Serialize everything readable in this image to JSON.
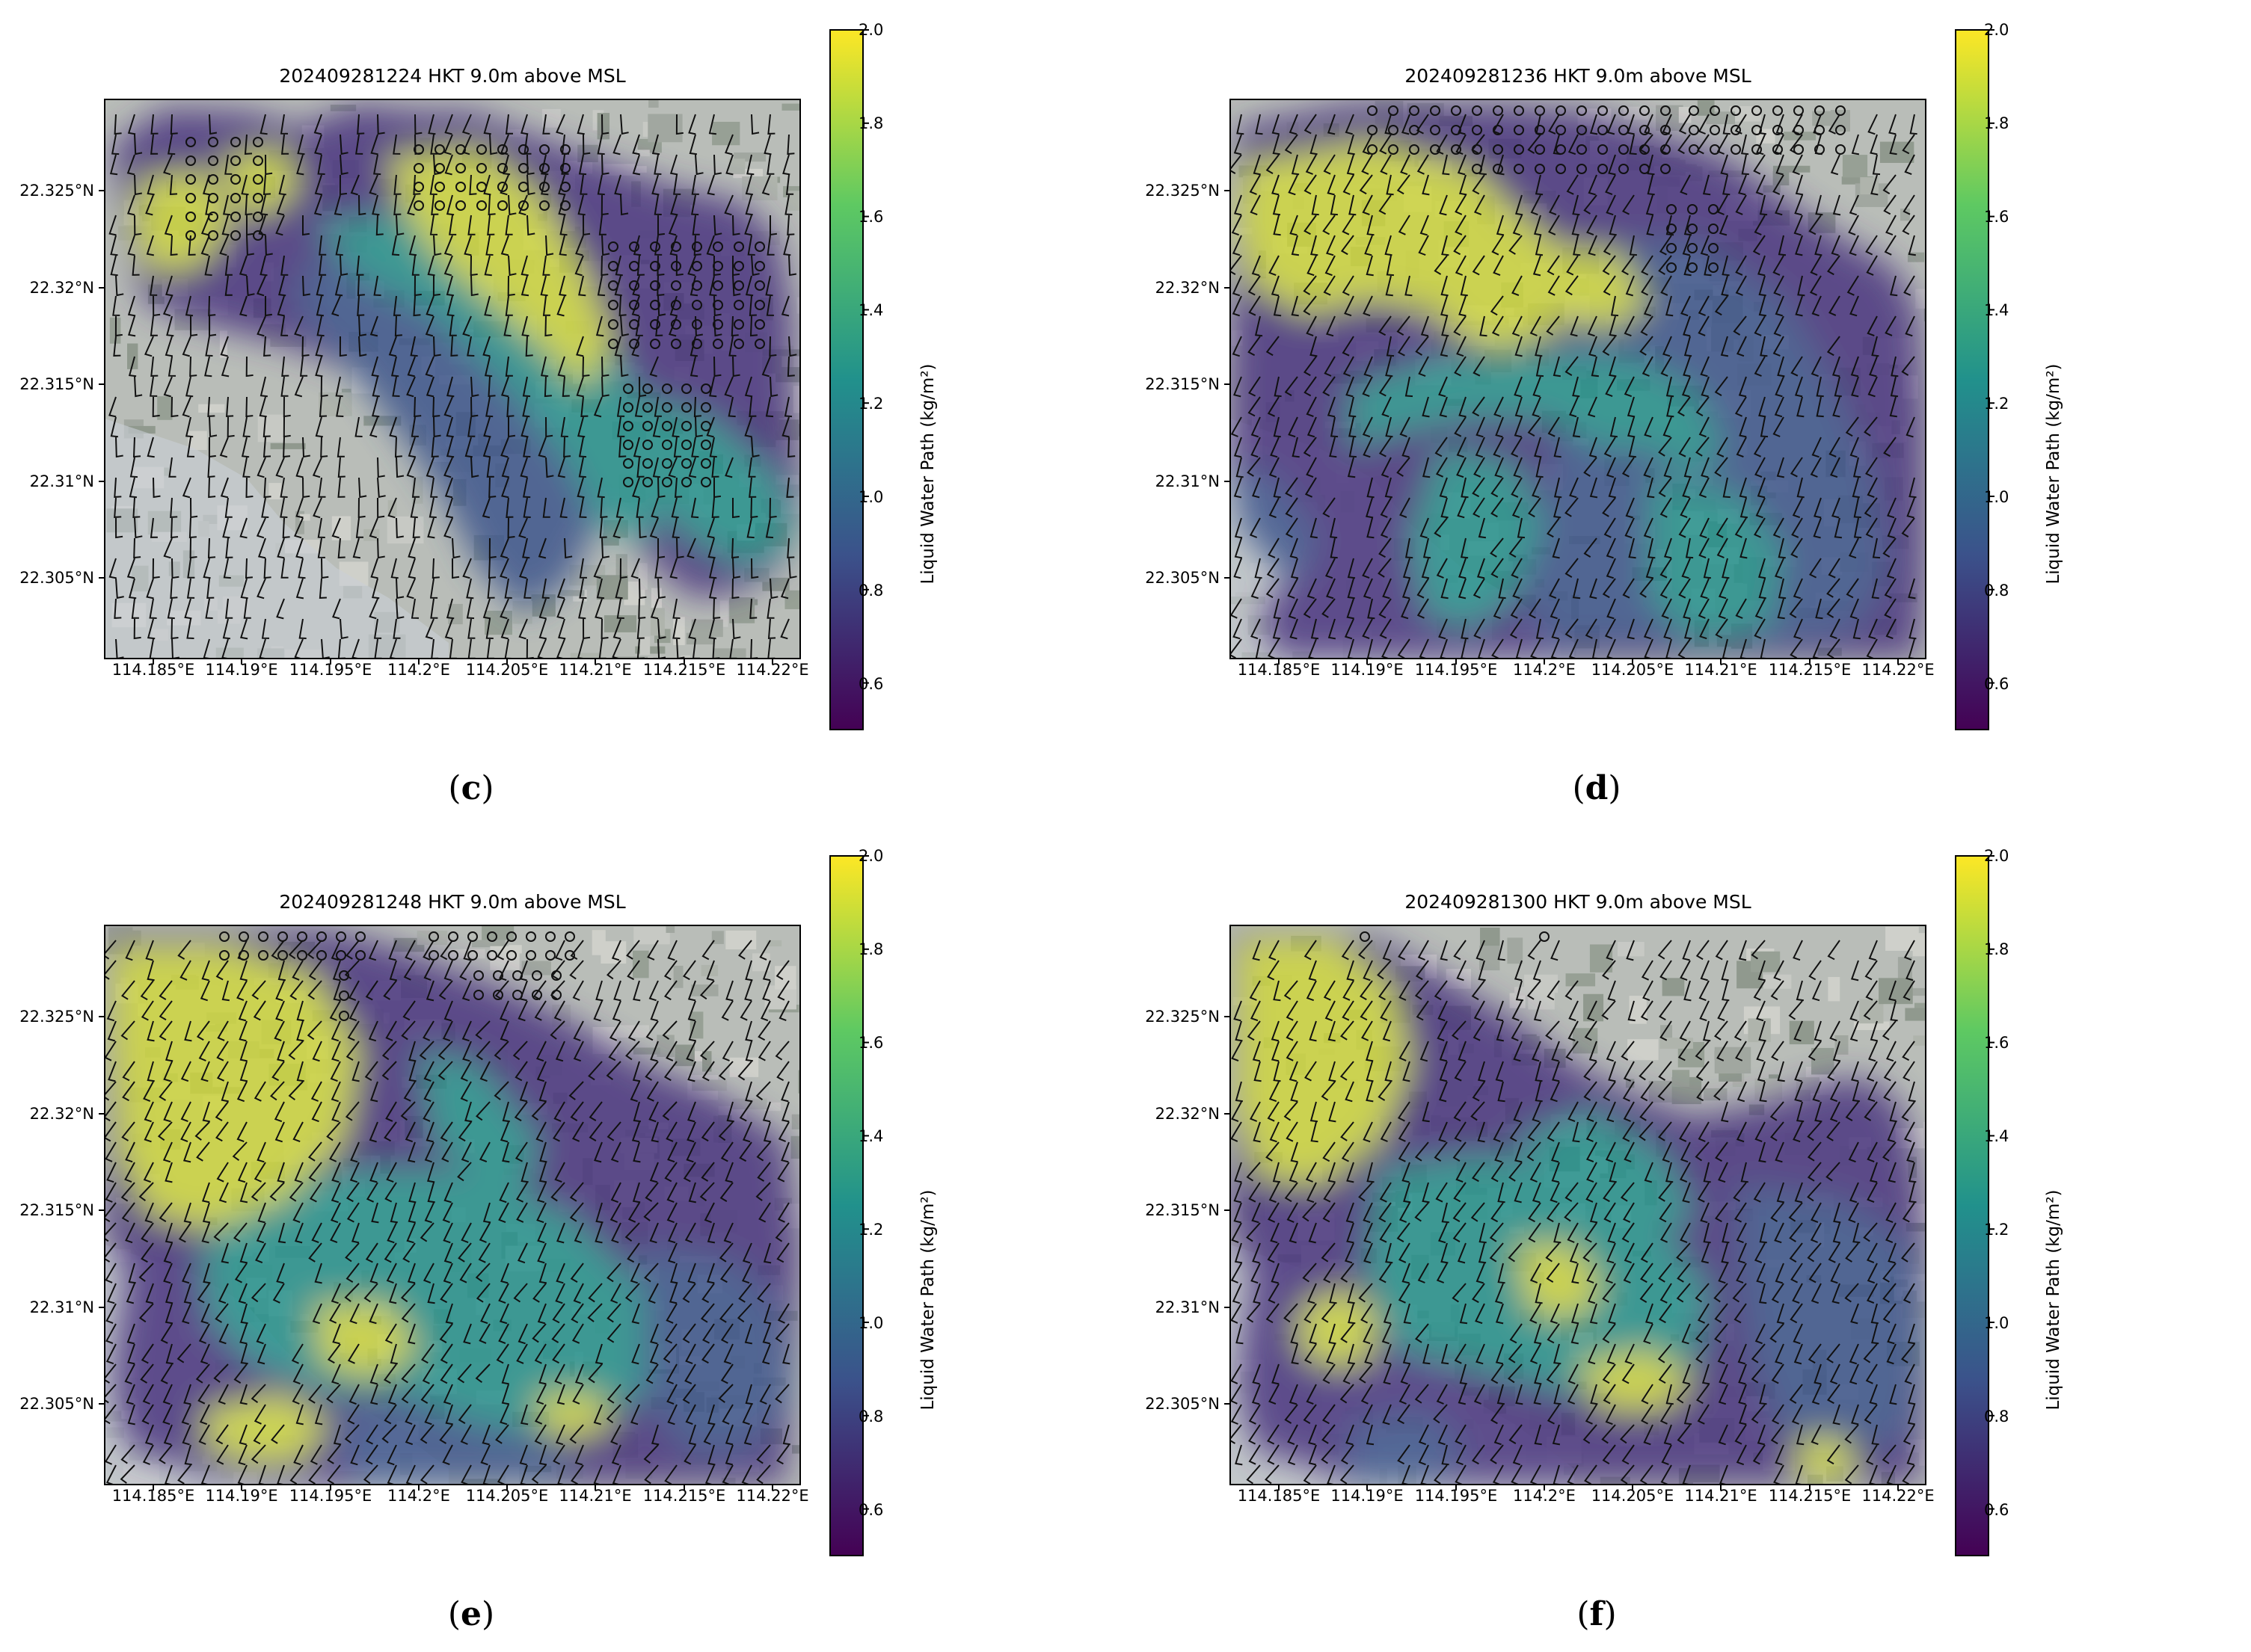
{
  "panels": [
    {
      "id": "c",
      "title": "202409281224 HKT 9.0m above MSL",
      "letter": "c"
    },
    {
      "id": "d",
      "title": "202409281236 HKT 9.0m above MSL",
      "letter": "d"
    },
    {
      "id": "e",
      "title": "202409281248 HKT 9.0m above MSL",
      "letter": "e"
    },
    {
      "id": "f",
      "title": "202409281300 HKT 9.0m above MSL",
      "letter": "f"
    }
  ],
  "axes": {
    "lat_ticks": [
      "22.325°N",
      "22.32°N",
      "22.315°N",
      "22.31°N",
      "22.305°N"
    ],
    "lon_ticks": [
      "114.185°E",
      "114.19°E",
      "114.195°E",
      "114.2°E",
      "114.205°E",
      "114.21°E",
      "114.215°E",
      "114.22°E"
    ]
  },
  "colorbar": {
    "title": "Liquid Water Path (kg/m²)",
    "ticks": [
      "2.0",
      "1.8",
      "1.6",
      "1.4",
      "1.2",
      "1.0",
      "0.8",
      "0.6"
    ],
    "range": [
      0.5,
      2.0
    ],
    "colormap": "viridis",
    "colors": [
      "#440154",
      "#3b528b",
      "#21918c",
      "#5ec962",
      "#fde725"
    ]
  },
  "chart_data": [
    {
      "type": "heatmap",
      "title": "202409281224 HKT 9.0m above MSL",
      "colorbar_label": "Liquid Water Path (kg/m²)",
      "colorbar_range": [
        0.5,
        2.0
      ],
      "lat_range": [
        22.301,
        22.33
      ],
      "lon_range": [
        114.184,
        114.221
      ],
      "overlay": "wind barbs and circles over satellite imagery"
    },
    {
      "type": "heatmap",
      "title": "202409281236 HKT 9.0m above MSL",
      "colorbar_label": "Liquid Water Path (kg/m²)",
      "colorbar_range": [
        0.5,
        2.0
      ],
      "lat_range": [
        22.301,
        22.33
      ],
      "lon_range": [
        114.184,
        114.221
      ],
      "overlay": "wind barbs and circles over satellite imagery"
    },
    {
      "type": "heatmap",
      "title": "202409281248 HKT 9.0m above MSL",
      "colorbar_label": "Liquid Water Path (kg/m²)",
      "colorbar_range": [
        0.5,
        2.0
      ],
      "lat_range": [
        22.301,
        22.33
      ],
      "lon_range": [
        114.184,
        114.221
      ],
      "overlay": "wind barbs and circles over satellite imagery"
    },
    {
      "type": "heatmap",
      "title": "202409281300 HKT 9.0m above MSL",
      "colorbar_label": "Liquid Water Path (kg/m²)",
      "colorbar_range": [
        0.5,
        2.0
      ],
      "lat_range": [
        22.301,
        22.33
      ],
      "lon_range": [
        114.184,
        114.221
      ],
      "overlay": "wind barbs and circles over satellite imagery"
    }
  ]
}
